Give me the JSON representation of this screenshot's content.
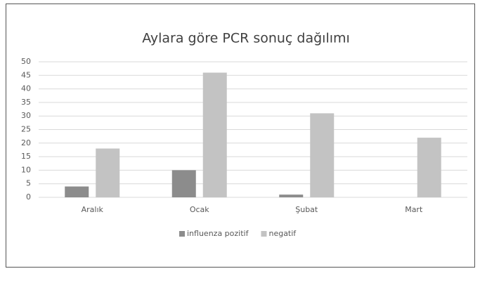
{
  "chart_data": {
    "type": "bar",
    "title": "Aylara göre PCR sonuç dağılımı",
    "categories": [
      "Aralık",
      "Ocak",
      "Şubat",
      "Mart"
    ],
    "series": [
      {
        "name": "influenza pozitif",
        "color": "#8c8c8c",
        "values": [
          4,
          10,
          1,
          0
        ]
      },
      {
        "name": "negatif",
        "color": "#c3c3c3",
        "values": [
          18,
          46,
          31,
          22
        ]
      }
    ],
    "ylim": [
      0,
      50
    ],
    "yticks": [
      0,
      5,
      10,
      15,
      20,
      25,
      30,
      35,
      40,
      45,
      50
    ],
    "grid": true,
    "legend": "bottom"
  }
}
